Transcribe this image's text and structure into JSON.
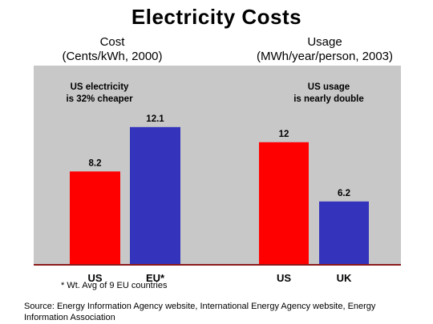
{
  "title": "Electricity Costs",
  "cost_header": {
    "line1": "Cost",
    "line2": "(Cents/kWh, 2000)"
  },
  "usage_header": {
    "line1": "Usage",
    "line2": "(MWh/year/person, 2003)"
  },
  "footnote": "* Wt. Avg of 9 EU countries",
  "source": "Source: Energy Information Agency website, International Energy Agency website, Energy Information Association",
  "chart_data": [
    {
      "type": "bar",
      "title": "Cost",
      "ylabel": "(Cents/kWh, 2000)",
      "categories": [
        "US",
        "EU*"
      ],
      "values": [
        8.2,
        12.1
      ],
      "value_labels": [
        "8.2",
        "12.1"
      ],
      "colors": [
        "#ff0000",
        "#3333bb"
      ],
      "annotation": [
        "US electricity",
        "is 32% cheaper"
      ],
      "ylim": [
        0,
        17.5
      ],
      "grid": false
    },
    {
      "type": "bar",
      "title": "Usage",
      "ylabel": "(MWh/year/person, 2003)",
      "categories": [
        "US",
        "UK"
      ],
      "values": [
        12,
        6.2
      ],
      "value_labels": [
        "12",
        "6.2"
      ],
      "colors": [
        "#ff0000",
        "#3333bb"
      ],
      "annotation": [
        "US usage",
        "is nearly double"
      ],
      "ylim": [
        0,
        19.5
      ],
      "grid": false
    }
  ],
  "colors": {
    "plot_background": "#c8c8c8",
    "baseline": "#8b1a1a"
  }
}
